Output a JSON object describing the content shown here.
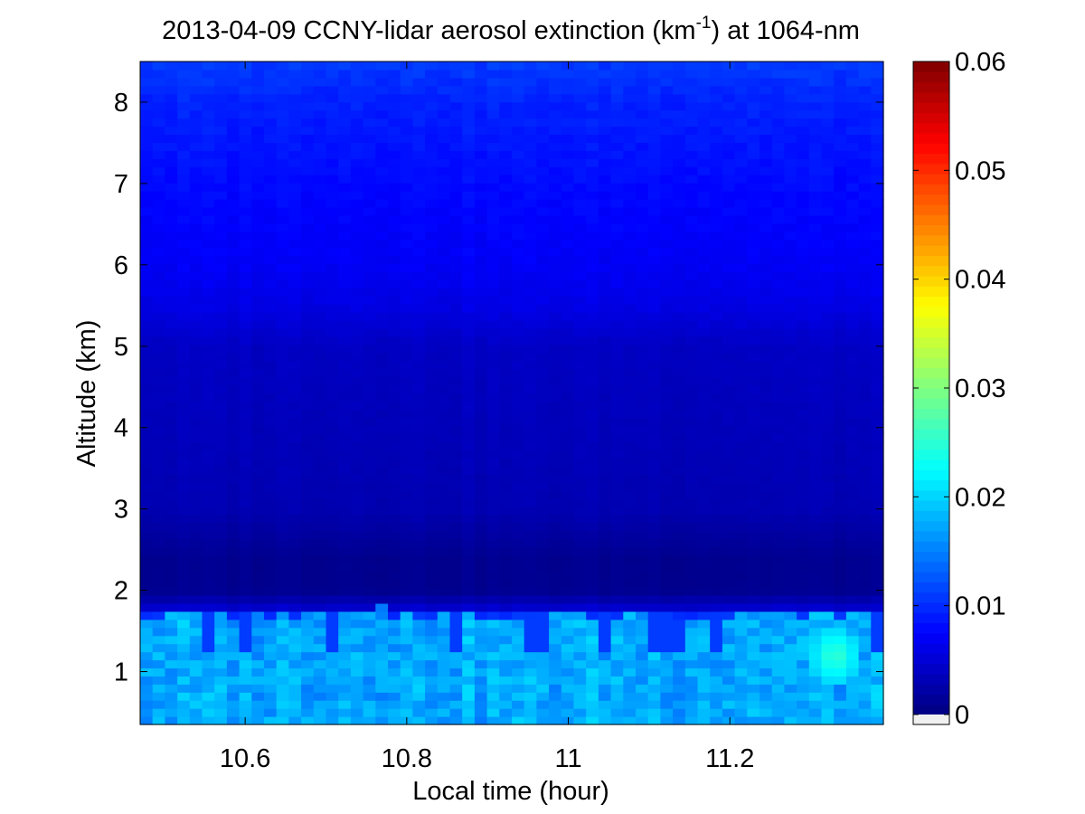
{
  "chart_data": {
    "type": "heatmap",
    "title": {
      "prefix": "2013-04-09 CCNY-lidar aerosol extinction (km",
      "superscript": "-1",
      "suffix": ") at 1064-nm"
    },
    "xlabel": "Local time (hour)",
    "ylabel": "Altitude (km)",
    "xlim": [
      10.47,
      11.39
    ],
    "ylim": [
      0.35,
      8.5
    ],
    "x_ticks": [
      10.6,
      10.8,
      11.0,
      11.2
    ],
    "x_tick_labels": [
      "10.6",
      "10.8",
      "11",
      "11.2"
    ],
    "y_ticks": [
      1,
      2,
      3,
      4,
      5,
      6,
      7,
      8
    ],
    "y_tick_labels": [
      "1",
      "2",
      "3",
      "4",
      "5",
      "6",
      "7",
      "8"
    ],
    "colorbar": {
      "colormap": "jet",
      "clim": [
        0,
        0.06
      ],
      "ticks": [
        0,
        0.01,
        0.02,
        0.03,
        0.04,
        0.05,
        0.06
      ],
      "tick_labels": [
        "0",
        "0.01",
        "0.02",
        "0.03",
        "0.04",
        "0.05",
        "0.06"
      ]
    },
    "time_bins": 60,
    "altitude_bins": 82,
    "altitude_profile_km": [
      0.4,
      1.0,
      1.6,
      1.8,
      2.0,
      2.4,
      3.0,
      4.0,
      5.0,
      5.5,
      6.0,
      7.0,
      8.0,
      8.5
    ],
    "extinction_profile": [
      0.016,
      0.017,
      0.016,
      0.004,
      0.001,
      0.001,
      0.003,
      0.0035,
      0.004,
      0.006,
      0.007,
      0.008,
      0.0095,
      0.011
    ],
    "boundary_layer_top_km": 1.72,
    "max_extinction": 0.026,
    "max_location": {
      "time_hour": 11.33,
      "altitude_km": 1.2
    }
  }
}
